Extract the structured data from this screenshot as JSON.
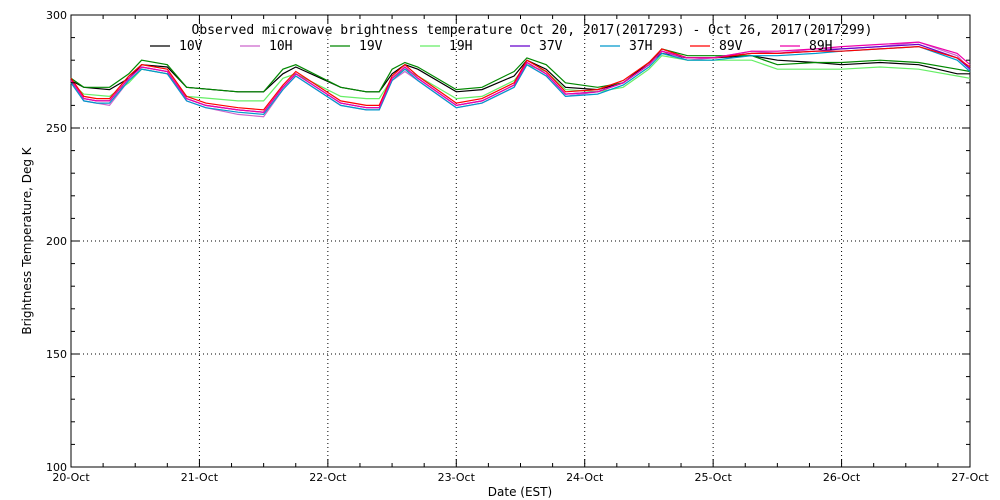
{
  "chart_data": {
    "type": "line",
    "title": "Observed microwave brightness temperature Oct 20, 2017(2017293) - Oct 26, 2017(2017299)",
    "xlabel": "Date (EST)",
    "ylabel": "Brightness Temperature, Deg K",
    "ylim": [
      100,
      300
    ],
    "y_ticks": [
      100,
      150,
      200,
      250,
      300
    ],
    "xlim_days": [
      0,
      7
    ],
    "x_ticks": [
      "20-Oct",
      "21-Oct",
      "22-Oct",
      "23-Oct",
      "24-Oct",
      "25-Oct",
      "26-Oct",
      "27-Oct"
    ],
    "grid": true,
    "legend_position": "top",
    "series": [
      {
        "name": "10V",
        "color": "#000000",
        "x": [
          0,
          0.1,
          0.3,
          0.45,
          0.55,
          0.75,
          0.9,
          1.3,
          1.5,
          1.65,
          1.75,
          2.1,
          2.3,
          2.4,
          2.5,
          2.6,
          2.7,
          3.0,
          3.2,
          3.45,
          3.55,
          3.7,
          3.85,
          4.1,
          4.3,
          4.5,
          4.6,
          4.8,
          5.0,
          5.3,
          5.5,
          5.8,
          6.0,
          6.3,
          6.6,
          6.9,
          7.0
        ],
        "values": [
          271,
          268,
          267,
          272,
          278,
          277,
          268,
          266,
          266,
          274,
          277,
          268,
          266,
          266,
          274,
          278,
          276,
          266,
          267,
          273,
          280,
          276,
          268,
          267,
          270,
          279,
          283,
          281,
          281,
          282,
          280,
          279,
          278,
          279,
          278,
          274,
          274
        ]
      },
      {
        "name": "10H",
        "color": "#cc66cc",
        "x": [
          0,
          0.1,
          0.2,
          0.3,
          0.45,
          0.55,
          0.75,
          0.9,
          1.05,
          1.3,
          1.5,
          1.65,
          1.75,
          2.1,
          2.3,
          2.4,
          2.5,
          2.6,
          2.7,
          3.0,
          3.2,
          3.45,
          3.55,
          3.7,
          3.85,
          4.1,
          4.3,
          4.5,
          4.6,
          4.8,
          5.0,
          5.3,
          5.5,
          5.8,
          6.0,
          6.3,
          6.6,
          6.9,
          7.0
        ],
        "values": [
          270,
          262,
          261,
          260,
          271,
          276,
          274,
          262,
          259,
          256,
          255,
          267,
          273,
          260,
          258,
          258,
          271,
          275,
          271,
          259,
          261,
          268,
          278,
          273,
          264,
          266,
          270,
          278,
          284,
          280,
          281,
          284,
          283,
          285,
          285,
          286,
          288,
          282,
          276
        ]
      },
      {
        "name": "19V",
        "color": "#008800",
        "x": [
          0,
          0.1,
          0.3,
          0.45,
          0.55,
          0.75,
          0.9,
          1.3,
          1.5,
          1.65,
          1.75,
          2.1,
          2.3,
          2.4,
          2.5,
          2.6,
          2.7,
          3.0,
          3.2,
          3.45,
          3.55,
          3.7,
          3.85,
          4.1,
          4.3,
          4.5,
          4.6,
          4.8,
          5.0,
          5.3,
          5.5,
          5.8,
          6.0,
          6.3,
          6.6,
          6.9,
          7.0
        ],
        "values": [
          272,
          268,
          268,
          274,
          280,
          278,
          268,
          266,
          266,
          276,
          278,
          268,
          266,
          266,
          276,
          279,
          277,
          267,
          268,
          275,
          281,
          278,
          270,
          268,
          270,
          278,
          285,
          282,
          282,
          282,
          278,
          279,
          279,
          280,
          279,
          276,
          275
        ]
      },
      {
        "name": "19H",
        "color": "#66ee66",
        "x": [
          0,
          0.1,
          0.3,
          0.45,
          0.55,
          0.75,
          0.9,
          1.3,
          1.5,
          1.65,
          1.75,
          2.1,
          2.3,
          2.4,
          2.5,
          2.6,
          2.7,
          3.0,
          3.2,
          3.45,
          3.55,
          3.7,
          3.85,
          4.1,
          4.3,
          4.5,
          4.6,
          4.8,
          5.0,
          5.3,
          5.5,
          5.8,
          6.0,
          6.3,
          6.6,
          6.9,
          7.0
        ],
        "values": [
          270,
          265,
          264,
          270,
          276,
          274,
          264,
          262,
          262,
          272,
          274,
          264,
          263,
          263,
          272,
          276,
          273,
          263,
          264,
          271,
          278,
          275,
          267,
          266,
          268,
          276,
          282,
          280,
          280,
          280,
          276,
          276,
          276,
          277,
          276,
          273,
          272
        ]
      },
      {
        "name": "37V",
        "color": "#6600cc",
        "x": [
          0,
          0.1,
          0.2,
          0.3,
          0.45,
          0.55,
          0.75,
          0.9,
          1.05,
          1.3,
          1.5,
          1.65,
          1.75,
          2.1,
          2.3,
          2.4,
          2.5,
          2.6,
          2.7,
          3.0,
          3.2,
          3.45,
          3.55,
          3.7,
          3.85,
          4.1,
          4.3,
          4.5,
          4.6,
          4.8,
          5.0,
          5.3,
          5.5,
          5.8,
          6.0,
          6.3,
          6.6,
          6.9,
          7.0
        ],
        "values": [
          271,
          263,
          262,
          262,
          272,
          277,
          275,
          263,
          260,
          258,
          257,
          268,
          274,
          261,
          259,
          259,
          272,
          277,
          272,
          260,
          262,
          269,
          279,
          274,
          265,
          266,
          270,
          278,
          284,
          281,
          281,
          283,
          283,
          284,
          285,
          286,
          287,
          281,
          276
        ]
      },
      {
        "name": "37H",
        "color": "#0099cc",
        "x": [
          0,
          0.1,
          0.2,
          0.3,
          0.45,
          0.55,
          0.75,
          0.9,
          1.05,
          1.3,
          1.5,
          1.65,
          1.75,
          2.1,
          2.3,
          2.4,
          2.5,
          2.6,
          2.7,
          3.0,
          3.2,
          3.45,
          3.55,
          3.7,
          3.85,
          4.1,
          4.3,
          4.5,
          4.6,
          4.8,
          5.0,
          5.3,
          5.5,
          5.8,
          6.0,
          6.3,
          6.6,
          6.9,
          7.0
        ],
        "values": [
          270,
          262,
          261,
          261,
          271,
          276,
          274,
          262,
          259,
          257,
          256,
          267,
          273,
          260,
          258,
          258,
          271,
          276,
          271,
          259,
          261,
          268,
          278,
          273,
          264,
          265,
          269,
          277,
          283,
          280,
          280,
          282,
          282,
          283,
          284,
          285,
          286,
          280,
          275
        ]
      },
      {
        "name": "89V",
        "color": "#ff0000",
        "x": [
          0,
          0.1,
          0.2,
          0.3,
          0.45,
          0.55,
          0.75,
          0.9,
          1.05,
          1.3,
          1.5,
          1.65,
          1.75,
          2.1,
          2.3,
          2.4,
          2.5,
          2.6,
          2.7,
          3.0,
          3.2,
          3.45,
          3.55,
          3.7,
          3.85,
          4.1,
          4.3,
          4.5,
          4.6,
          4.8,
          5.0,
          5.3,
          5.5,
          5.8,
          6.0,
          6.3,
          6.6,
          6.9,
          7.0
        ],
        "values": [
          272,
          264,
          263,
          263,
          273,
          278,
          276,
          264,
          261,
          259,
          258,
          269,
          275,
          262,
          260,
          260,
          273,
          278,
          273,
          261,
          263,
          270,
          280,
          275,
          266,
          267,
          271,
          279,
          285,
          281,
          281,
          283,
          283,
          284,
          284,
          285,
          286,
          281,
          277
        ]
      },
      {
        "name": "89H",
        "color": "#ee00aa",
        "x": [
          0,
          0.1,
          0.2,
          0.3,
          0.45,
          0.55,
          0.75,
          0.9,
          1.05,
          1.3,
          1.5,
          1.65,
          1.75,
          2.1,
          2.3,
          2.4,
          2.5,
          2.6,
          2.7,
          3.0,
          3.2,
          3.45,
          3.55,
          3.7,
          3.85,
          4.1,
          4.3,
          4.5,
          4.6,
          4.8,
          5.0,
          5.3,
          5.5,
          5.8,
          6.0,
          6.3,
          6.6,
          6.9,
          7.0
        ],
        "values": [
          271,
          263,
          262,
          262,
          272,
          277,
          275,
          263,
          260,
          258,
          257,
          268,
          274,
          261,
          259,
          259,
          272,
          277,
          272,
          260,
          262,
          269,
          279,
          274,
          265,
          266,
          270,
          278,
          284,
          281,
          281,
          284,
          284,
          285,
          286,
          287,
          288,
          283,
          278
        ]
      }
    ]
  }
}
